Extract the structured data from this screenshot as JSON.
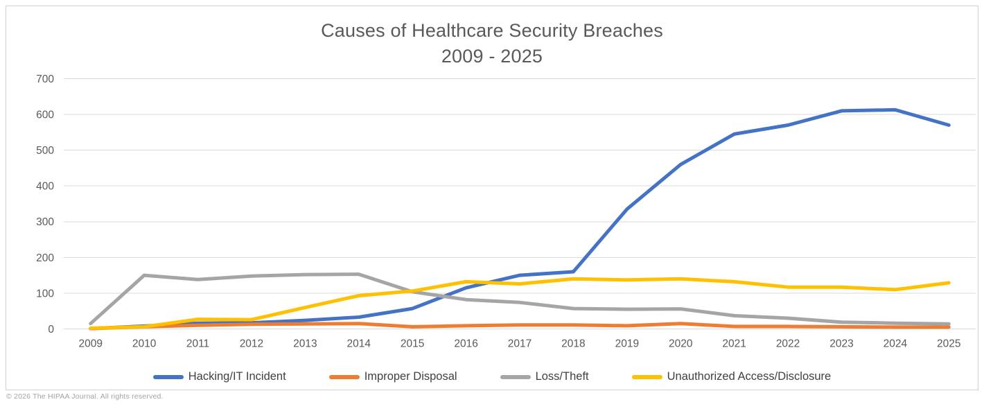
{
  "page": {
    "copyright": "© 2026 The HIPAA Journal. All rights reserved."
  },
  "chart_data": {
    "type": "line",
    "title": "Causes of Healthcare Security Breaches",
    "subtitle": "2009 - 2025",
    "categories": [
      "2009",
      "2010",
      "2011",
      "2012",
      "2013",
      "2014",
      "2015",
      "2016",
      "2017",
      "2018",
      "2019",
      "2020",
      "2021",
      "2022",
      "2023",
      "2024",
      "2025"
    ],
    "series": [
      {
        "name": "Hacking/IT Incident",
        "color": "#4472C4",
        "values": [
          1,
          8,
          16,
          17,
          24,
          33,
          57,
          115,
          150,
          160,
          335,
          460,
          545,
          570,
          610,
          613,
          570
        ]
      },
      {
        "name": "Improper Disposal",
        "color": "#ED7D31",
        "values": [
          1,
          6,
          10,
          13,
          14,
          15,
          6,
          9,
          11,
          11,
          9,
          15,
          7,
          7,
          6,
          5,
          5
        ]
      },
      {
        "name": "Loss/Theft",
        "color": "#A5A5A5",
        "values": [
          15,
          150,
          138,
          148,
          152,
          153,
          104,
          82,
          74,
          57,
          55,
          56,
          37,
          30,
          19,
          16,
          14
        ]
      },
      {
        "name": "Unauthorized Access/Disclosure",
        "color": "#FFC000",
        "values": [
          2,
          6,
          27,
          26,
          60,
          93,
          106,
          132,
          126,
          140,
          137,
          140,
          132,
          117,
          117,
          110,
          129
        ]
      }
    ],
    "ylabel": "",
    "xlabel": "",
    "ylim": [
      0,
      700
    ],
    "ytick_step": 100,
    "grid": "horizontal",
    "grid_color": "#D9D9D9",
    "text_color": "#595959",
    "legend_position": "bottom",
    "line_width": 5
  }
}
